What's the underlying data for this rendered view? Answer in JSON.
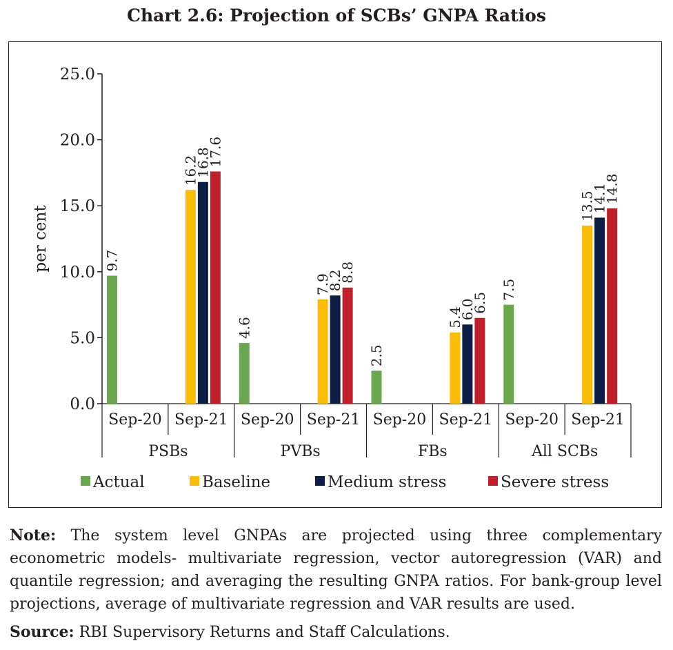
{
  "title": "Chart 2.6: Projection of SCBs’ GNPA Ratios",
  "note": {
    "label": "Note:",
    "text": "The system level GNPAs are projected using three complementary econometric models- multivariate regression, vector autoregression (VAR) and quantile regression; and averaging the resulting GNPA ratios. For bank-group level projections, average of multivariate regression and VAR results are used."
  },
  "source": {
    "label": "Source:",
    "text": "RBI Supervisory Returns and Staff Calculations."
  },
  "chart_data": {
    "type": "bar",
    "ylabel": "per cent",
    "ylim": [
      0,
      25
    ],
    "yticks": [
      "0.0",
      "5.0",
      "10.0",
      "15.0",
      "20.0",
      "25.0"
    ],
    "groups": [
      {
        "label": "PSBs",
        "periods": [
          "Sep-20",
          "Sep-21"
        ]
      },
      {
        "label": "PVBs",
        "periods": [
          "Sep-20",
          "Sep-21"
        ]
      },
      {
        "label": "FBs",
        "periods": [
          "Sep-20",
          "Sep-21"
        ]
      },
      {
        "label": "All SCBs",
        "periods": [
          "Sep-20",
          "Sep-21"
        ]
      }
    ],
    "series": [
      {
        "name": "Actual",
        "color": "#6aa84f",
        "period": "Sep-20",
        "values": [
          9.7,
          4.6,
          2.5,
          7.5
        ]
      },
      {
        "name": "Baseline",
        "color": "#fbbc05",
        "period": "Sep-21",
        "values": [
          16.2,
          7.9,
          5.4,
          13.5
        ]
      },
      {
        "name": "Medium stress",
        "color": "#0b1f44",
        "period": "Sep-21",
        "values": [
          16.8,
          8.2,
          6.0,
          14.1
        ]
      },
      {
        "name": "Severe stress",
        "color": "#c0202a",
        "period": "Sep-21",
        "values": [
          17.6,
          8.8,
          6.5,
          14.8
        ]
      }
    ],
    "data_labels": [
      [
        "9.7",
        "4.6",
        "2.5",
        "7.5"
      ],
      [
        "16.2",
        "7.9",
        "5.4",
        "13.5"
      ],
      [
        "16.8",
        "8.2",
        "6.0",
        "14.1"
      ],
      [
        "17.6",
        "8.8",
        "6.5",
        "14.8"
      ]
    ],
    "legend_position": "bottom",
    "grid": false
  }
}
